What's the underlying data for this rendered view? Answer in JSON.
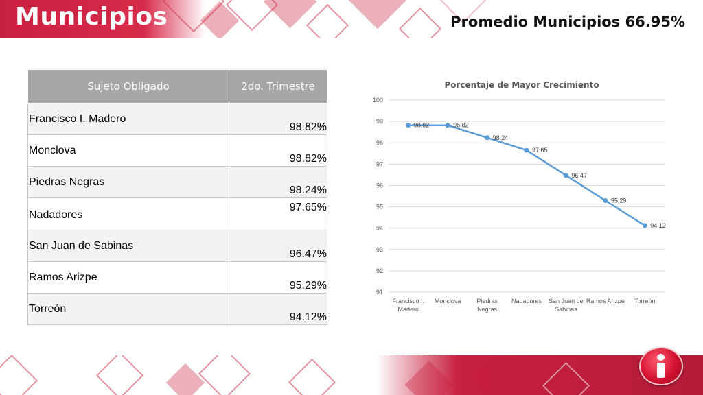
{
  "header": {
    "title": "Municipios",
    "average_label": "Promedio Municipios 66.95%"
  },
  "table": {
    "headers": [
      "Sujeto Obligado",
      "2do. Trimestre"
    ],
    "rows": [
      {
        "name": "Francisco I. Madero",
        "value": "98.82%"
      },
      {
        "name": "Monclova",
        "value": "98.82%"
      },
      {
        "name": "Piedras Negras",
        "value": "98.24%"
      },
      {
        "name": "Nadadores",
        "value": "97.65%"
      },
      {
        "name": "San Juan de Sabinas",
        "value": "96.47%"
      },
      {
        "name": "Ramos Arizpe",
        "value": "95.29%"
      },
      {
        "name": "Torreón",
        "value": "94.12%"
      }
    ]
  },
  "chart_data": {
    "type": "line",
    "title": "Porcentaje de  Mayor Crecimiento",
    "categories": [
      [
        "Francisco I.",
        "Madero"
      ],
      [
        "Monclova"
      ],
      [
        "Piedras",
        "Negras"
      ],
      [
        "Nadadores"
      ],
      [
        "San Juan de",
        "Sabinas"
      ],
      [
        "Ramos Arizpe"
      ],
      [
        "Torreón"
      ]
    ],
    "values": [
      98.82,
      98.82,
      98.24,
      97.65,
      96.47,
      95.29,
      94.12
    ],
    "data_labels": [
      "98,82",
      "98,82",
      "98,24",
      "97,65",
      "96,47",
      "95,29",
      "94,12"
    ],
    "ylim": [
      91,
      100
    ],
    "yticks": [
      "91",
      "92",
      "93",
      "94",
      "95",
      "96",
      "97",
      "98",
      "99",
      "100"
    ],
    "grid": true,
    "legend": "none",
    "color": "#5b9bd5"
  },
  "colors": {
    "brand_red": "#c8203f",
    "table_header": "#a6a6a6",
    "line": "#5b9bd5"
  }
}
